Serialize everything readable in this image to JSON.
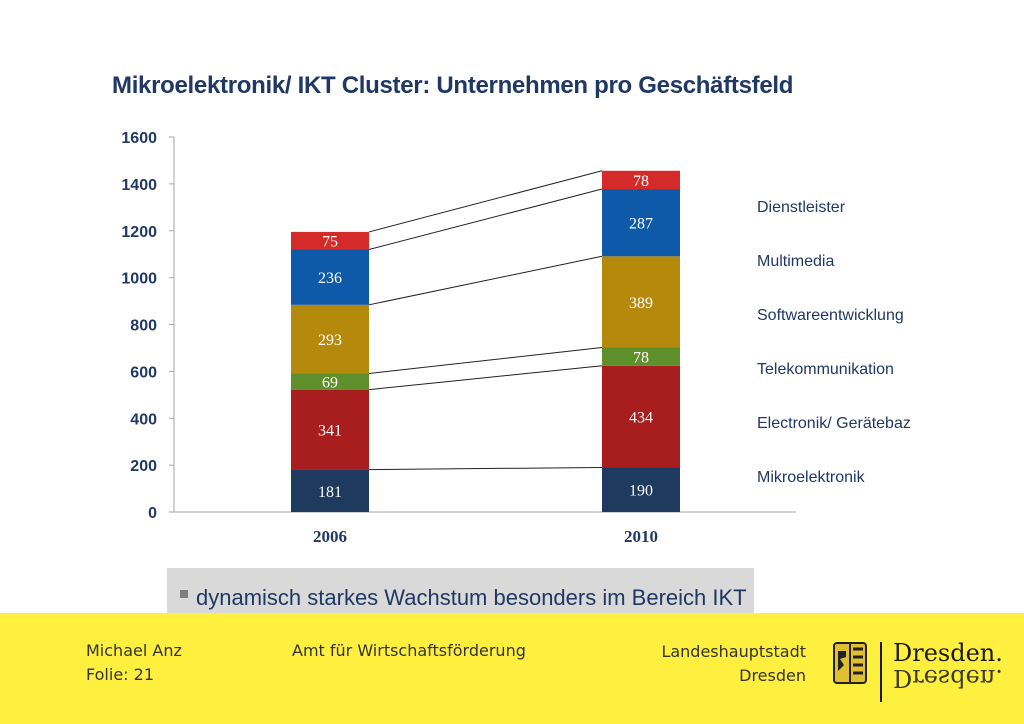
{
  "title": "Mikroelektronik/ IKT Cluster: Unternehmen pro Geschäftsfeld",
  "chart_data": {
    "type": "bar",
    "stacked": true,
    "categories": [
      "2006",
      "2010"
    ],
    "ylim": [
      0,
      1600
    ],
    "yticks": [
      0,
      200,
      400,
      600,
      800,
      1000,
      1200,
      1400,
      1600
    ],
    "legend_position": "right",
    "series": [
      {
        "name": "Mikroelektronik",
        "values": [
          181,
          190
        ],
        "color": "#1f3a5f",
        "label_color": "#ffffff"
      },
      {
        "name": "Electronik/ Gerätebaz",
        "values": [
          341,
          434
        ],
        "color": "#a81d1d",
        "label_color": "#ffffff"
      },
      {
        "name": "Telekommunikation",
        "values": [
          69,
          78
        ],
        "color": "#5e8f2b",
        "label_color": "#ffffff"
      },
      {
        "name": "Softwareentwicklung",
        "values": [
          293,
          389
        ],
        "color": "#b5890b",
        "label_color": "#ffffff"
      },
      {
        "name": "Multimedia",
        "values": [
          236,
          287
        ],
        "color": "#0f5aa8",
        "label_color": "#ffffff"
      },
      {
        "name": "Dienstleister",
        "values": [
          75,
          78
        ],
        "color": "#d42a2a",
        "label_color": "#ffffff"
      }
    ]
  },
  "note": {
    "text": "dynamisch starkes Wachstum besonders im Bereich IKT"
  },
  "footer": {
    "author": "Michael Anz",
    "slide": "Folie: 21",
    "department": "Amt für Wirtschaftsförderung",
    "city_line1": "Landeshauptstadt",
    "city_line2": "Dresden",
    "logo_text": "Dresden."
  }
}
